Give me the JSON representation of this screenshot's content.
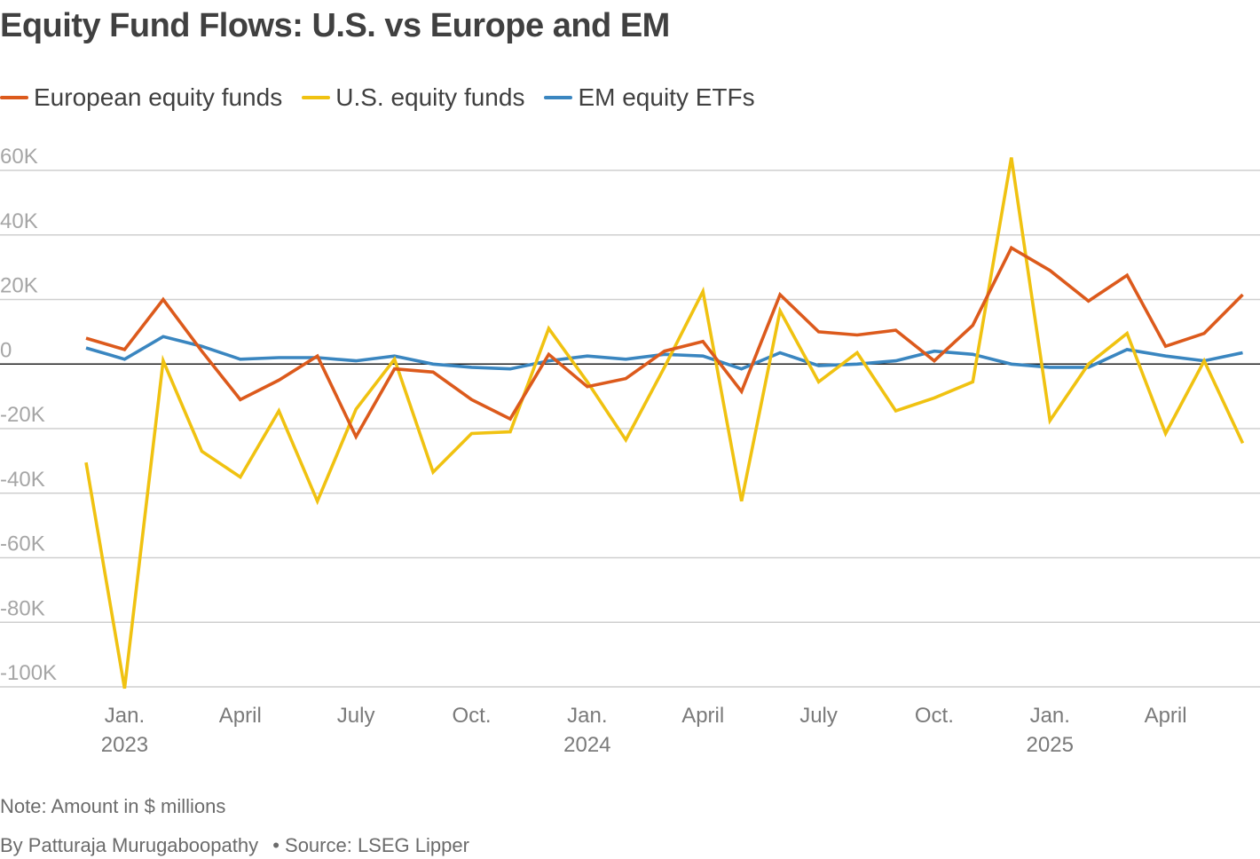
{
  "header": {
    "title": "Equity Fund Flows: U.S. vs Europe and EM"
  },
  "legend": [
    {
      "label": "European equity funds",
      "color": "#dc5a1c"
    },
    {
      "label": "U.S. equity funds",
      "color": "#f0c211"
    },
    {
      "label": "EM equity ETFs",
      "color": "#3a86c0"
    }
  ],
  "footer": {
    "note": "Note: Amount in $ millions",
    "byline": "By Patturaja Murugaboopathy",
    "source": "• Source: LSEG Lipper"
  },
  "chart_data": {
    "type": "line",
    "title": "Equity Fund Flows: U.S. vs Europe and EM",
    "xlabel": "",
    "ylabel": "",
    "ylim": [
      -100000,
      60000
    ],
    "y_ticks": [
      {
        "value": 60000,
        "label": "60K"
      },
      {
        "value": 40000,
        "label": "40K"
      },
      {
        "value": 20000,
        "label": "20K"
      },
      {
        "value": 0,
        "label": "0"
      },
      {
        "value": -20000,
        "label": "-20K"
      },
      {
        "value": -40000,
        "label": "-40K"
      },
      {
        "value": -60000,
        "label": "-60K"
      },
      {
        "value": -80000,
        "label": "-80K"
      },
      {
        "value": -100000,
        "label": "-100K"
      }
    ],
    "x": [
      "2022-12",
      "2023-01",
      "2023-02",
      "2023-03",
      "2023-04",
      "2023-05",
      "2023-06",
      "2023-07",
      "2023-08",
      "2023-09",
      "2023-10",
      "2023-11",
      "2023-12",
      "2024-01",
      "2024-02",
      "2024-03",
      "2024-04",
      "2024-05",
      "2024-06",
      "2024-07",
      "2024-08",
      "2024-09",
      "2024-10",
      "2024-11",
      "2024-12",
      "2025-01",
      "2025-02",
      "2025-03",
      "2025-04",
      "2025-05",
      "2025-06"
    ],
    "x_ticks": [
      {
        "index": 1,
        "label": "Jan.",
        "year": "2023"
      },
      {
        "index": 4,
        "label": "April",
        "year": ""
      },
      {
        "index": 7,
        "label": "July",
        "year": ""
      },
      {
        "index": 10,
        "label": "Oct.",
        "year": ""
      },
      {
        "index": 13,
        "label": "Jan.",
        "year": "2024"
      },
      {
        "index": 16,
        "label": "April",
        "year": ""
      },
      {
        "index": 19,
        "label": "July",
        "year": ""
      },
      {
        "index": 22,
        "label": "Oct.",
        "year": ""
      },
      {
        "index": 25,
        "label": "Jan.",
        "year": "2025"
      },
      {
        "index": 28,
        "label": "April",
        "year": ""
      }
    ],
    "series": [
      {
        "name": "European equity funds",
        "color": "#dc5a1c",
        "values": [
          8000,
          4500,
          20000,
          4000,
          -11000,
          -5000,
          2500,
          -22500,
          -1500,
          -2500,
          -11000,
          -17000,
          3000,
          -7000,
          -4500,
          4000,
          7000,
          -8500,
          21500,
          10000,
          9000,
          10500,
          1000,
          12000,
          36000,
          29000,
          19500,
          27500,
          5500,
          9500,
          21500
        ]
      },
      {
        "name": "U.S. equity funds",
        "color": "#f0c211",
        "values": [
          -30500,
          -100500,
          1000,
          -27000,
          -35000,
          -14500,
          -42500,
          -14000,
          1500,
          -33500,
          -21500,
          -21000,
          11000,
          -5500,
          -23500,
          -1000,
          22500,
          -42500,
          16500,
          -5500,
          3500,
          -14500,
          -10500,
          -5500,
          64000,
          -17500,
          0,
          9500,
          -21500,
          1000,
          -24500
        ]
      },
      {
        "name": "EM equity ETFs",
        "color": "#3a86c0",
        "values": [
          5000,
          1500,
          8500,
          5500,
          1500,
          2000,
          2000,
          1000,
          2500,
          0,
          -1000,
          -1500,
          1000,
          2500,
          1500,
          3000,
          2500,
          -1500,
          3500,
          -500,
          0,
          1000,
          4000,
          3000,
          0,
          -1000,
          -1000,
          4500,
          2500,
          1000,
          3500
        ]
      }
    ]
  }
}
